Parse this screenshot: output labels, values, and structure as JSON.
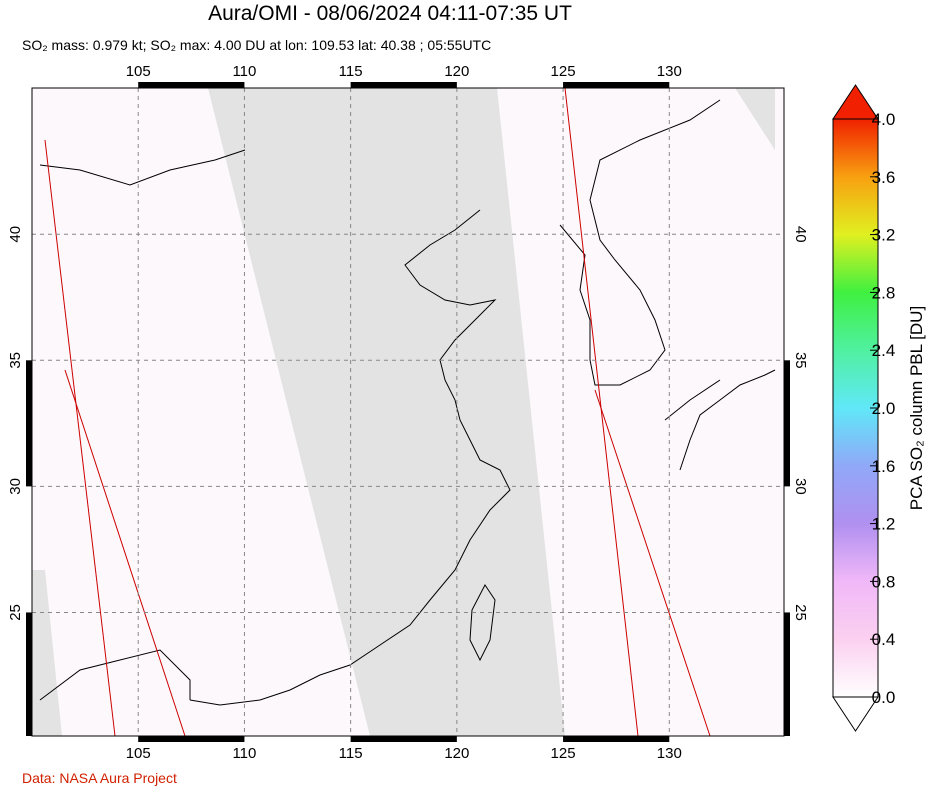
{
  "chart_data": {
    "type": "map",
    "title": "Aura/OMI - 08/06/2024 04:11-07:35 UT",
    "subtitle": "SO₂ mass: 0.979 kt; SO₂ max: 4.00 DU at lon: 109.53 lat: 40.38 ; 05:55UTC",
    "xlim": [
      100,
      135.4
    ],
    "ylim": [
      20.1,
      45.8
    ],
    "xticks": [
      105,
      110,
      115,
      120,
      125,
      130
    ],
    "yticks": [
      25,
      30,
      35,
      40
    ],
    "grid": true,
    "colorbar": {
      "label": "PCA SO₂ column PBL [DU]",
      "lim": [
        0,
        4
      ],
      "ticks": [
        {
          "value": 0,
          "label": "0.0"
        },
        0.4,
        0.8,
        1.2,
        1.6,
        {
          "value": 2,
          "label": "2.0"
        },
        2.4,
        2.8,
        3.2,
        3.6,
        {
          "value": 4,
          "label": "4.0"
        }
      ],
      "colors": [
        "#ffffff",
        "#fbd0f0",
        "#f0b8f8",
        "#b090f0",
        "#90a8f8",
        "#60e8f8",
        "#50f0a0",
        "#40f040",
        "#e0f020",
        "#f8a010",
        "#f02000"
      ]
    },
    "footer": "Data: NASA Aura Project"
  }
}
